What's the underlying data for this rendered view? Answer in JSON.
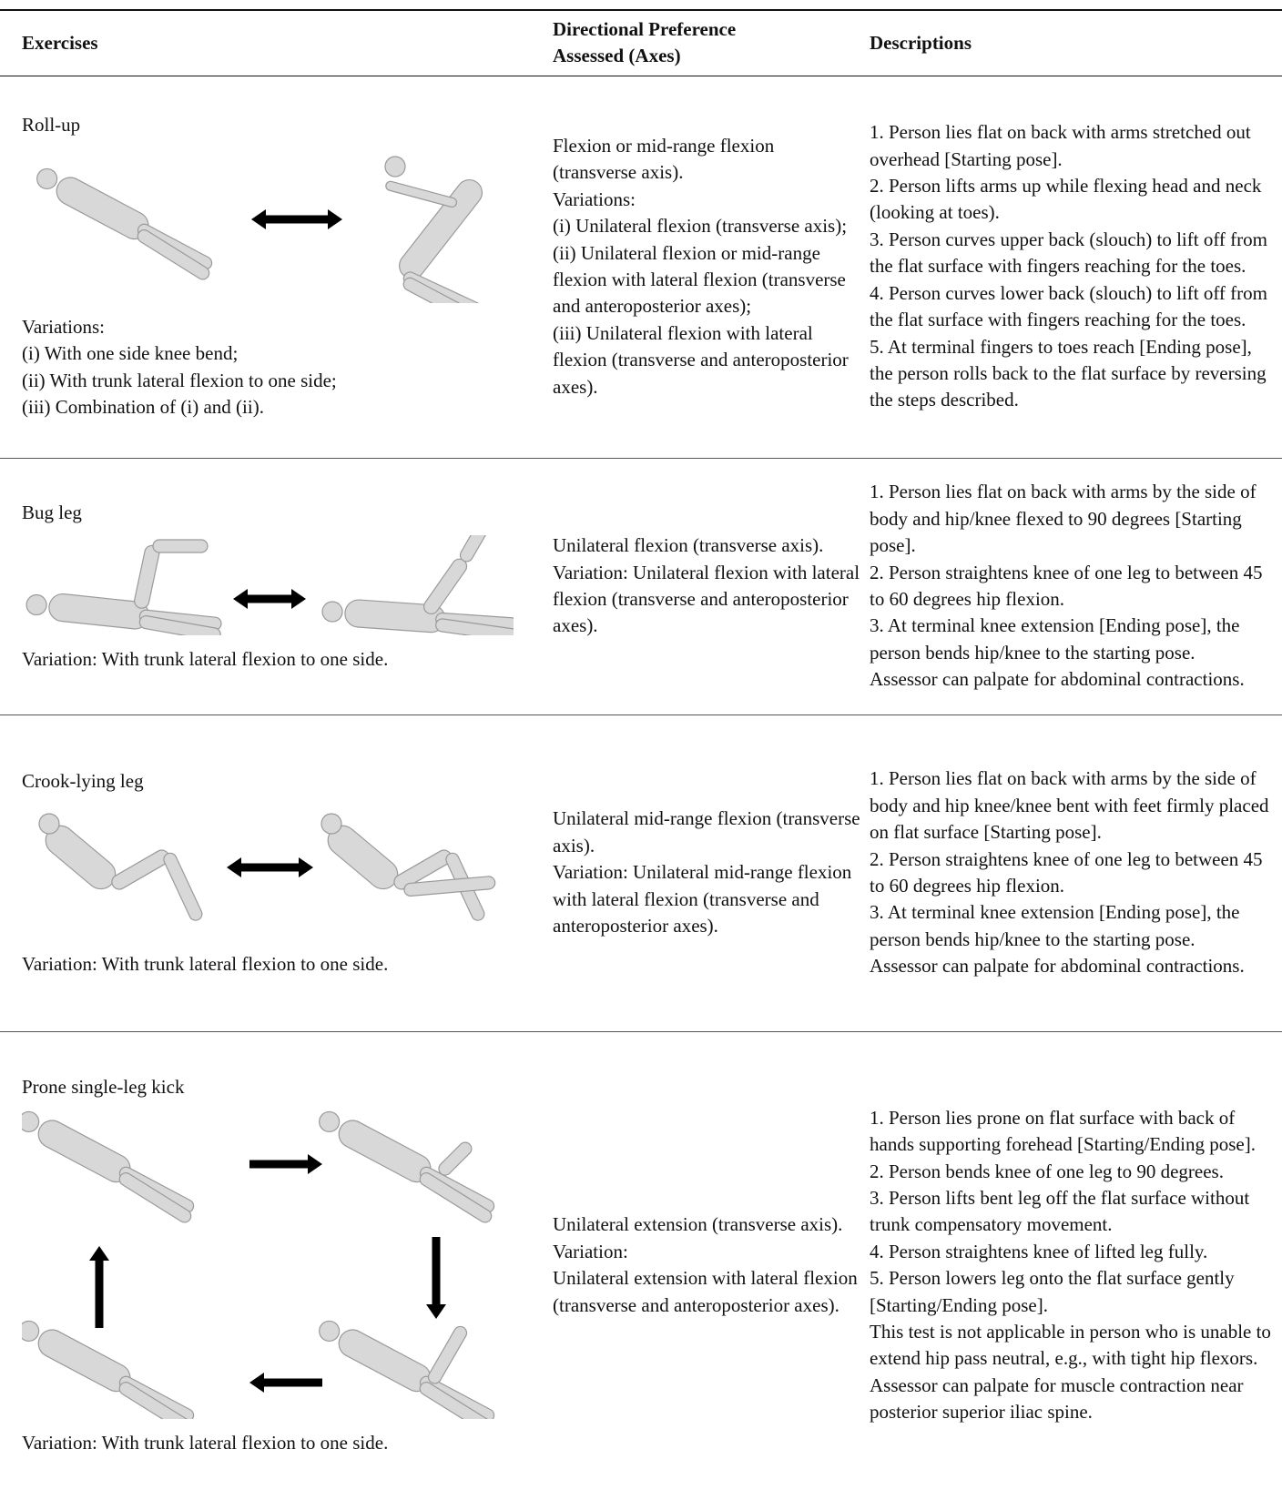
{
  "table": {
    "headers": [
      "Exercises",
      "Directional Preference Assessed (Axes)",
      "Descriptions"
    ],
    "rows": [
      {
        "exercise": "Roll-up",
        "variations": [
          "Variations:",
          "(i) With one side knee bend;",
          "(ii) With trunk lateral flexion to one side;",
          "(iii) Combination of (i) and (ii)."
        ],
        "directional": [
          "Flexion or mid-range flexion (transverse axis).",
          "Variations:",
          "(i) Unilateral flexion (transverse axis);",
          "(ii) Unilateral flexion or mid-range flexion with lateral flexion (transverse and anteroposterior axes);",
          "(iii) Unilateral flexion with lateral flexion (transverse and anteroposterior axes)."
        ],
        "description": [
          "1. Person lies flat on back with arms stretched out overhead [Starting pose].",
          "2. Person lifts arms up while flexing head and neck (looking at toes).",
          "3. Person curves upper back (slouch) to lift off from the flat surface with fingers reaching for the toes.",
          "4. Person curves lower back (slouch) to lift off from the flat surface with fingers reaching for the toes.",
          "5. At terminal fingers to toes reach [Ending pose], the person rolls back to the flat surface by reversing the steps described."
        ]
      },
      {
        "exercise": "Bug leg",
        "variations": [
          "Variation: With trunk lateral flexion to one side."
        ],
        "directional": [
          "Unilateral flexion (transverse axis).",
          "Variation: Unilateral flexion with lateral flexion (transverse and anteroposterior axes)."
        ],
        "description": [
          "1. Person lies flat on back with arms by the side of body and hip/knee flexed to 90 degrees [Starting pose].",
          "2. Person straightens knee of one leg to between 45 to 60 degrees hip flexion.",
          "3. At terminal knee extension [Ending pose], the person bends hip/knee to the starting pose.",
          "Assessor can palpate for abdominal contractions."
        ]
      },
      {
        "exercise": "Crook-lying leg",
        "variations": [
          "Variation: With trunk lateral flexion to one side."
        ],
        "directional": [
          "Unilateral mid-range flexion (transverse axis).",
          "Variation: Unilateral mid-range flexion with lateral flexion (transverse and anteroposterior axes)."
        ],
        "description": [
          "1. Person lies flat on back with arms by the side of body and hip knee/knee bent with feet firmly placed on flat surface [Starting pose].",
          "2. Person straightens knee of one leg to between 45 to 60 degrees hip flexion.",
          "3. At terminal knee extension [Ending pose], the person bends hip/knee to the starting pose.",
          "Assessor can palpate for abdominal contractions."
        ]
      },
      {
        "exercise": "Prone single-leg kick",
        "variations": [
          "Variation: With trunk lateral flexion to one side."
        ],
        "directional": [
          "Unilateral extension (transverse axis).",
          "Variation:",
          "Unilateral extension with lateral flexion (transverse and anteroposterior axes)."
        ],
        "description": [
          "1. Person lies prone on flat surface with back of hands supporting forehead [Starting/Ending pose].",
          "2. Person bends knee of one leg to 90 degrees.",
          "3. Person lifts bent leg off the flat surface without trunk compensatory movement.",
          "4. Person straightens knee of lifted leg fully.",
          "5. Person lowers leg onto the flat surface gently [Starting/Ending pose].",
          "This test is not applicable in person who is unable to extend hip pass neutral, e.g., with tight hip flexors.",
          "Assessor can palpate for muscle contraction near posterior superior iliac spine."
        ]
      }
    ]
  }
}
